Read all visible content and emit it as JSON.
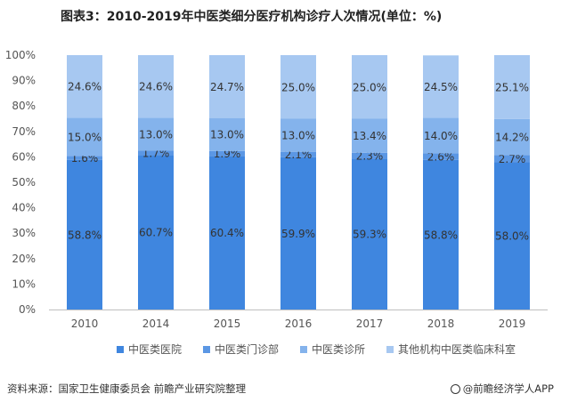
{
  "chart_data": {
    "type": "bar",
    "stacked": true,
    "title": "图表3：2010-2019年中医类细分医疗机构诊疗人次情况(单位：%)",
    "categories": [
      "2010",
      "2014",
      "2015",
      "2016",
      "2017",
      "2018",
      "2019"
    ],
    "series": [
      {
        "name": "中医类医院",
        "values": [
          58.8,
          60.7,
          60.4,
          59.9,
          59.3,
          58.8,
          58.0
        ],
        "color": "#3f86df"
      },
      {
        "name": "中医类门诊部",
        "values": [
          1.6,
          1.7,
          1.9,
          2.1,
          2.3,
          2.6,
          2.7
        ],
        "color": "#5b97e4"
      },
      {
        "name": "中医类诊所",
        "values": [
          15.0,
          13.0,
          13.0,
          13.0,
          13.4,
          14.0,
          14.2
        ],
        "color": "#84b3ec"
      },
      {
        "name": "其他机构中医类临床科室",
        "values": [
          24.6,
          24.6,
          24.7,
          25.0,
          25.0,
          24.5,
          25.1
        ],
        "color": "#a7c8f1"
      }
    ],
    "data_labels": [
      [
        "58.8%",
        "60.7%",
        "60.4%",
        "59.9%",
        "59.3%",
        "58.8%",
        "58.0%"
      ],
      [
        "1.6%",
        "1.7%",
        "1.9%",
        "2.1%",
        "2.3%",
        "2.6%",
        "2.7%"
      ],
      [
        "15.0%",
        "13.0%",
        "13.0%",
        "13.0%",
        "13.4%",
        "14.0%",
        "14.2%"
      ],
      [
        "24.6%",
        "24.6%",
        "24.7%",
        "25.0%",
        "25.0%",
        "24.5%",
        "25.1%"
      ]
    ],
    "yticks": [
      "0%",
      "10%",
      "20%",
      "30%",
      "40%",
      "50%",
      "60%",
      "70%",
      "80%",
      "90%",
      "100%"
    ],
    "ylim": [
      0,
      100
    ],
    "xlabel": "",
    "ylabel": "",
    "legend_position": "bottom",
    "grid": false
  },
  "footer": {
    "source": "资料来源：国家卫生健康委员会 前瞻产业研究院整理",
    "brand": "@前瞻经济学人APP"
  }
}
